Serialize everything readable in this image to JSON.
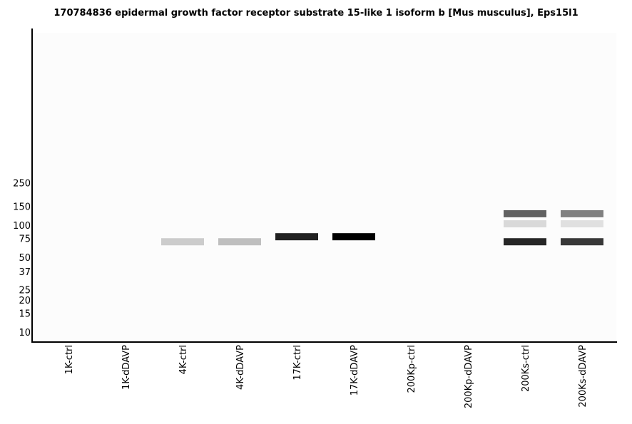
{
  "chart_data": {
    "type": "heatmap",
    "title": "170784836 epidermal growth factor receptor substrate 15-like 1 isoform b [Mus musculus], Eps15l1",
    "xlabel": "",
    "ylabel": "",
    "y_scale": "log",
    "y_ticks": [
      250,
      150,
      100,
      75,
      50,
      37,
      25,
      20,
      15,
      10
    ],
    "lanes": [
      "1K-ctrl",
      "1K-dDAVP",
      "4K-ctrl",
      "4K-dDAVP",
      "17K-ctrl",
      "17K-dDAVP",
      "200Kp-ctrl",
      "200Kp-dDAVP",
      "200Ks-ctrl",
      "200Ks-dDAVP"
    ],
    "bands": [
      {
        "lane": "4K-ctrl",
        "mw": 70,
        "intensity": 0.2
      },
      {
        "lane": "4K-dDAVP",
        "mw": 70,
        "intensity": 0.25
      },
      {
        "lane": "17K-ctrl",
        "mw": 78,
        "intensity": 0.87
      },
      {
        "lane": "17K-dDAVP",
        "mw": 78,
        "intensity": 1.0
      },
      {
        "lane": "200Ks-ctrl",
        "mw": 128,
        "intensity": 0.62
      },
      {
        "lane": "200Ks-ctrl",
        "mw": 103,
        "intensity": 0.15
      },
      {
        "lane": "200Ks-ctrl",
        "mw": 70,
        "intensity": 0.85
      },
      {
        "lane": "200Ks-dDAVP",
        "mw": 128,
        "intensity": 0.5
      },
      {
        "lane": "200Ks-dDAVP",
        "mw": 103,
        "intensity": 0.12
      },
      {
        "lane": "200Ks-dDAVP",
        "mw": 70,
        "intensity": 0.78
      }
    ]
  }
}
